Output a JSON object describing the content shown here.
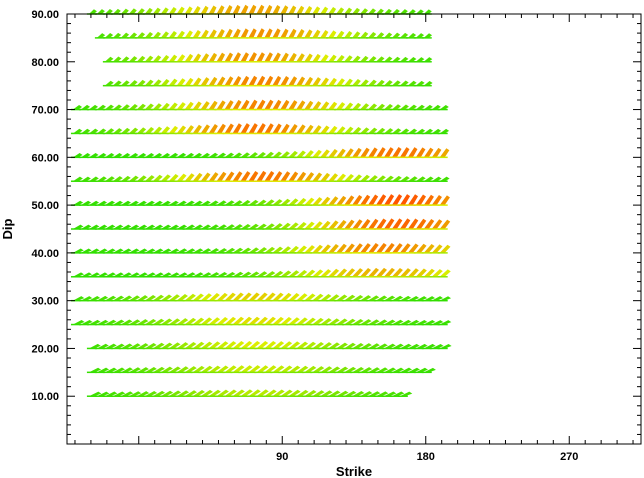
{
  "chart_data": {
    "type": "scatter",
    "title": "",
    "xlabel": "Strike",
    "ylabel": "Dip",
    "xlim": [
      -45,
      315
    ],
    "ylim": [
      0,
      90
    ],
    "x_ticks": [
      {
        "value": 90,
        "label": "90"
      },
      {
        "value": 180,
        "label": "180"
      },
      {
        "value": 270,
        "label": "270"
      }
    ],
    "y_ticks": [
      {
        "value": 10,
        "label": "10.00"
      },
      {
        "value": 20,
        "label": "20.00"
      },
      {
        "value": 30,
        "label": "30.00"
      },
      {
        "value": 40,
        "label": "40.00"
      },
      {
        "value": 50,
        "label": "50.00"
      },
      {
        "value": 60,
        "label": "60.00"
      },
      {
        "value": 70,
        "label": "70.00"
      },
      {
        "value": 80,
        "label": "80.00"
      },
      {
        "value": 90,
        "label": "90.00"
      }
    ],
    "grid": false,
    "colors": {
      "low_fit": "#22dd00",
      "mid_fit": "#ddee00",
      "high_fit": "#ff5500",
      "axis": "#000000"
    },
    "mark": "focal-mechanism-glyph (fill color = goodness of fit)",
    "rows": [
      {
        "dip": 10,
        "strike_start": -30,
        "strike_end": 165,
        "peak_strike": 70,
        "peak_fit": 0.35
      },
      {
        "dip": 15,
        "strike_start": -30,
        "strike_end": 180,
        "peak_strike": 70,
        "peak_fit": 0.4
      },
      {
        "dip": 20,
        "strike_start": -30,
        "strike_end": 190,
        "peak_strike": 70,
        "peak_fit": 0.45
      },
      {
        "dip": 25,
        "strike_start": -40,
        "strike_end": 190,
        "peak_strike": 70,
        "peak_fit": 0.5
      },
      {
        "dip": 30,
        "strike_start": -40,
        "strike_end": 190,
        "peak_strike": 70,
        "peak_fit": 0.55
      },
      {
        "dip": 35,
        "strike_start": -40,
        "strike_end": 190,
        "peak_strike": 150,
        "peak_fit": 0.65
      },
      {
        "dip": 40,
        "strike_start": -40,
        "strike_end": 190,
        "peak_strike": 150,
        "peak_fit": 0.8
      },
      {
        "dip": 45,
        "strike_start": -40,
        "strike_end": 190,
        "peak_strike": 160,
        "peak_fit": 0.9
      },
      {
        "dip": 50,
        "strike_start": -40,
        "strike_end": 190,
        "peak_strike": 160,
        "peak_fit": 0.95
      },
      {
        "dip": 55,
        "strike_start": -40,
        "strike_end": 190,
        "peak_strike": 75,
        "peak_fit": 0.85
      },
      {
        "dip": 60,
        "strike_start": -40,
        "strike_end": 190,
        "peak_strike": 160,
        "peak_fit": 0.85
      },
      {
        "dip": 65,
        "strike_start": -40,
        "strike_end": 190,
        "peak_strike": 70,
        "peak_fit": 0.85
      },
      {
        "dip": 70,
        "strike_start": -40,
        "strike_end": 190,
        "peak_strike": 75,
        "peak_fit": 0.8
      },
      {
        "dip": 75,
        "strike_start": -20,
        "strike_end": 180,
        "peak_strike": 75,
        "peak_fit": 0.8
      },
      {
        "dip": 80,
        "strike_start": -20,
        "strike_end": 180,
        "peak_strike": 70,
        "peak_fit": 0.75
      },
      {
        "dip": 85,
        "strike_start": -25,
        "strike_end": 180,
        "peak_strike": 75,
        "peak_fit": 0.75
      },
      {
        "dip": 90,
        "strike_start": -30,
        "strike_end": 180,
        "peak_strike": 70,
        "peak_fit": 0.7
      }
    ]
  }
}
